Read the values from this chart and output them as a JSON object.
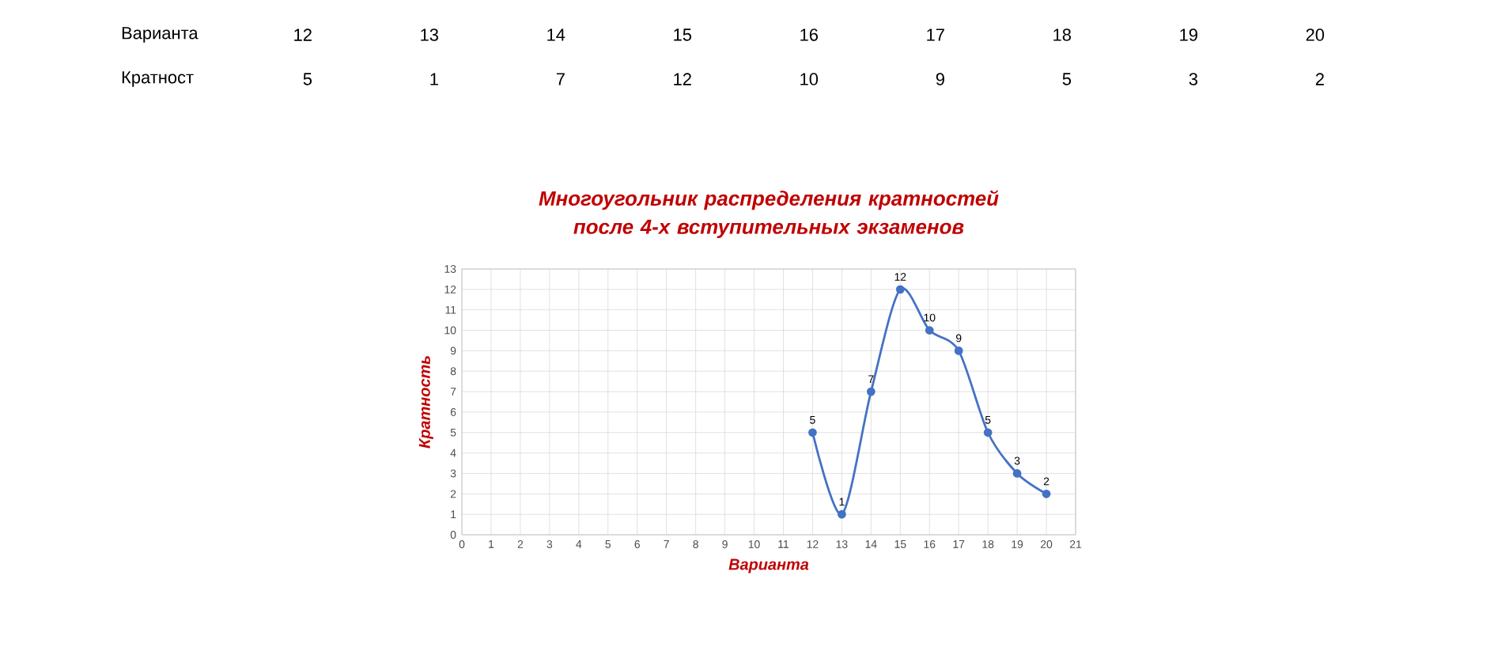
{
  "chart_data": {
    "type": "line",
    "title": "Многоугольник распределения кратностей после 4-х вступительных экзаменов",
    "xlabel": "Варианта",
    "ylabel": "Кратность",
    "x": [
      12,
      13,
      14,
      15,
      16,
      17,
      18,
      19,
      20
    ],
    "values": [
      5,
      1,
      7,
      12,
      10,
      9,
      5,
      3,
      2
    ],
    "color": "#4472c4",
    "xlim": [
      0,
      21
    ],
    "ylim": [
      0,
      13
    ],
    "xticks": [
      0,
      1,
      2,
      3,
      4,
      5,
      6,
      7,
      8,
      9,
      10,
      11,
      12,
      13,
      14,
      15,
      16,
      17,
      18,
      19,
      20,
      21
    ],
    "yticks": [
      0,
      1,
      2,
      3,
      4,
      5,
      6,
      7,
      8,
      9,
      10,
      11,
      12,
      13
    ],
    "grid": true,
    "marker": "circle",
    "line_style": "solid",
    "data_labels": true,
    "annotations": [
      "Варианта",
      "12",
      "13",
      "14",
      "15",
      "16",
      "17",
      "18",
      "19",
      "20",
      "Кратност",
      "5",
      "1",
      "7",
      "12",
      "10",
      "9",
      "5",
      "3",
      "2"
    ]
  }
}
